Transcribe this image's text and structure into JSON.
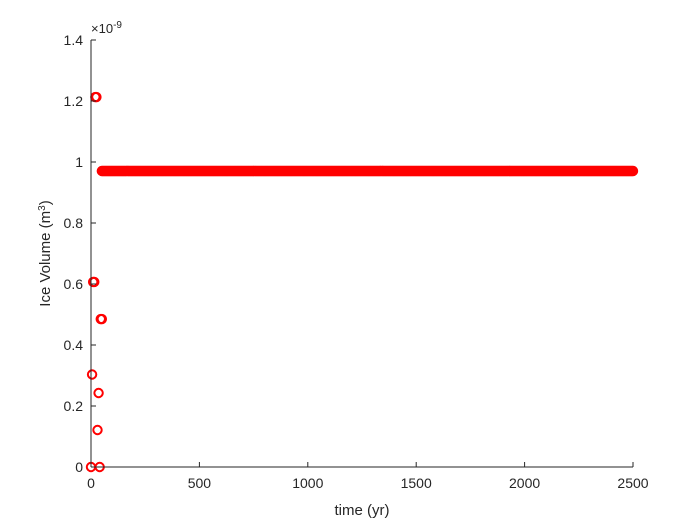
{
  "chart_data": {
    "type": "scatter",
    "title": "",
    "xlabel": "time (yr)",
    "ylabel_main": "Ice Volume (m",
    "ylabel_sup": "3",
    "ylabel_close": ")",
    "y_exponent_prefix": "×10",
    "y_exponent_power": "-9",
    "xlim": [
      0,
      2500
    ],
    "ylim": [
      0,
      1.4
    ],
    "x_ticks": [
      0,
      500,
      1000,
      1500,
      2000,
      2500
    ],
    "x_tick_labels": [
      "0",
      "500",
      "1000",
      "1500",
      "2000",
      "2500"
    ],
    "y_ticks": [
      0,
      0.2,
      0.4,
      0.6,
      0.8,
      1.0,
      1.2,
      1.4
    ],
    "y_tick_labels": [
      "0",
      "0.2",
      "0.4",
      "0.6",
      "0.8",
      "1",
      "1.2",
      "1.4"
    ],
    "grid": false,
    "marker": "circle-open",
    "marker_color": "#ff0000",
    "series": [
      {
        "x": [
          0,
          5,
          10,
          15,
          20,
          25,
          30,
          35,
          40,
          45,
          50
        ],
        "y": [
          0,
          0.3033,
          0.6066,
          0.6066,
          1.213,
          1.213,
          0.1213,
          0.2426,
          0,
          0.4852,
          0.4852
        ]
      },
      {
        "constant_segment": true,
        "x_start": 50,
        "x_end": 2500,
        "x_step": 5,
        "y": 0.9705
      }
    ]
  }
}
